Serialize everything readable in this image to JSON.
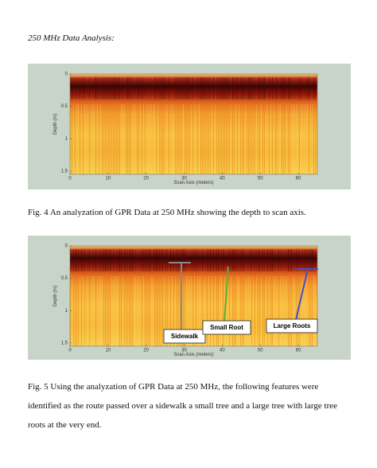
{
  "heading": "250 MHz Data Analysis:",
  "figures": [
    {
      "xlabel": "Scan Axis (meters)",
      "ylabel": "Depth (m)",
      "xlim": [
        0,
        65
      ],
      "ylim": [
        0,
        1.55
      ],
      "xticks": [
        0,
        10,
        20,
        30,
        40,
        50,
        60
      ],
      "yticks": [
        0,
        0.5,
        1,
        1.5
      ],
      "caption": "Fig. 4 An analyzation of GPR Data at 250 MHz showing the depth to scan axis."
    },
    {
      "xlabel": "Scan Axis (meters)",
      "ylabel": "Depth (m)",
      "xlim": [
        0,
        65
      ],
      "ylim": [
        0,
        1.55
      ],
      "xticks": [
        0,
        10,
        20,
        30,
        40,
        50,
        60
      ],
      "yticks": [
        0,
        0.5,
        1,
        1.5
      ],
      "annotations": [
        {
          "label": "Sidewalk"
        },
        {
          "label": "Small Root"
        },
        {
          "label": "Large Roots"
        }
      ],
      "caption": "Fig. 5 Using the analyzation of GPR Data at 250 MHz, the following features were identified as the route passed over a sidewalk a small tree and a large tree with large tree roots at the very end."
    }
  ]
}
